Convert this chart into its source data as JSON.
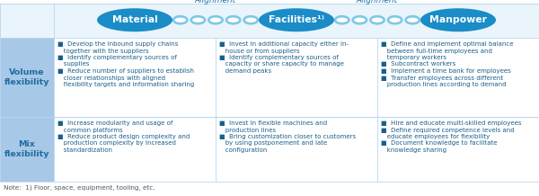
{
  "header_oval_color": "#1A8CC7",
  "chain_fill_color": "#7EC8E8",
  "chain_bg_color": "#FFFFFF",
  "alignment_text_color": "#1A6EA0",
  "row_label_bg": "#A8C8E8",
  "row_label_text": "#1F6EA0",
  "cell_text_color": "#1A5F8A",
  "border_color": "#B8D8EE",
  "header_bg_color": "#EAF4FB",
  "note_color": "#555555",
  "header_labels": [
    "Material",
    "Facilities¹⁾",
    "Manpower"
  ],
  "alignment_labels": [
    "Alignment",
    "Alignment"
  ],
  "row_labels": [
    "Volume\nflexibility",
    "Mix\nflexibility"
  ],
  "note": "Note:  1) Floor, space, equipment, tooling, etc.",
  "col1_vol": "■  Develop the inbound supply chains\n   together with the suppliers\n■  Identify complementary sources of\n   supplies\n■  Reduce number of suppliers to establish\n   closer relationships with aligned\n   flexibility targets and information sharing",
  "col2_vol": "■  Invest in additional capacity either in-\n   house or from suppliers\n■  Identify complementary sources of\n   capacity or share capacity to manage\n   demand peaks",
  "col3_vol": "■  Define and implement optimal balance\n   between full-time employees and\n   temporary workers\n■  Subcontract workers\n■  Implement a time bank for employees\n■  Transfer employees across different\n   production lines according to demand",
  "col1_mix": "■  Increase modularity and usage of\n   common platforms\n■  Reduce product design complexity and\n   production complexity by increased\n   standardization",
  "col2_mix": "■  Invest in flexible machines and\n   production lines\n■  Bring customization closer to customers\n   by using postponement and late\n   configuration",
  "col3_mix": "■  Hire and educate multi-skilled employees\n■  Define required competence levels and\n   educate employees for flexibility\n■  Document knowledge to facilitate\n   knowledge sharing"
}
